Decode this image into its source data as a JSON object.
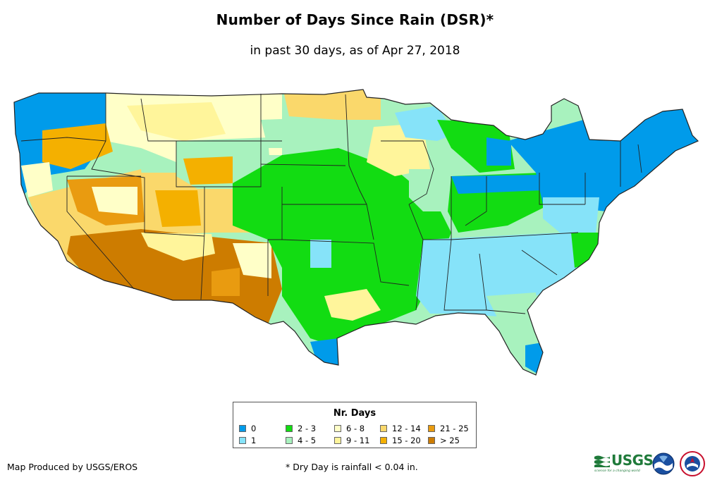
{
  "title": "Number of Days Since Rain (DSR)*",
  "subtitle": "in past 30 days, as of Apr 27, 2018",
  "legend": {
    "title": "Nr. Days",
    "items": [
      {
        "label": "0",
        "color": "#009bea"
      },
      {
        "label": "1",
        "color": "#86e3f9"
      },
      {
        "label": "2 - 3",
        "color": "#12dc12"
      },
      {
        "label": "4 - 5",
        "color": "#a8f2be"
      },
      {
        "label": "6 - 8",
        "color": "#ffffc8"
      },
      {
        "label": "9 - 11",
        "color": "#fff59b"
      },
      {
        "label": "12 - 14",
        "color": "#fad86b"
      },
      {
        "label": "15 - 20",
        "color": "#f4b000"
      },
      {
        "label": "21 - 25",
        "color": "#e99b10"
      },
      {
        "label": "> 25",
        "color": "#cd7c00"
      }
    ]
  },
  "footer": {
    "credit": "Map Produced by USGS/EROS",
    "note": "* Dry Day is rainfall < 0.04 in."
  },
  "logos": {
    "usgs_text": "USGS",
    "usgs_tagline": "science for a changing world",
    "noaa_icon": "noaa-logo-icon",
    "nws_icon": "nws-logo-icon"
  }
}
